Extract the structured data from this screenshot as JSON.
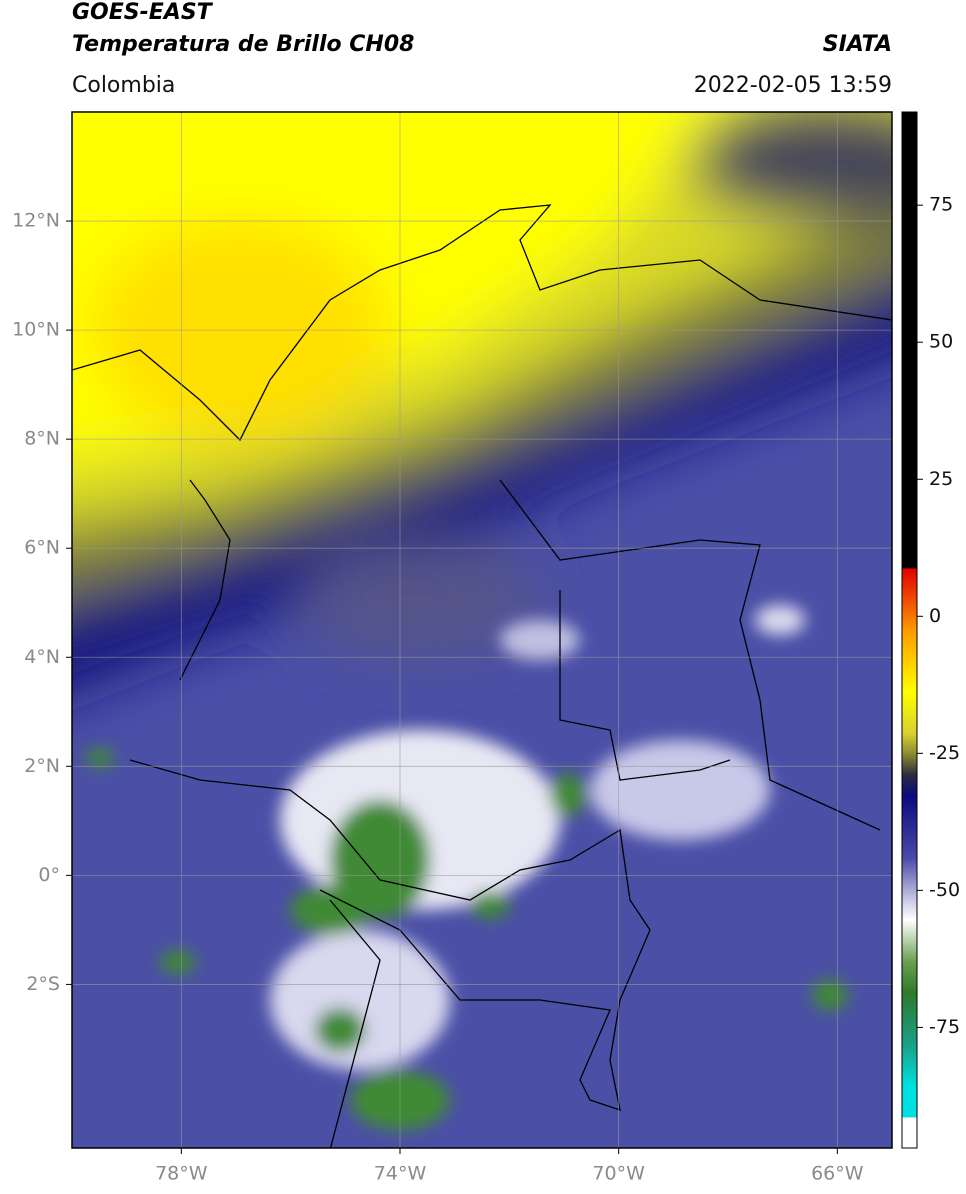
{
  "header": {
    "title": "GOES-EAST",
    "subtitle": "Temperatura de Brillo CH08",
    "source": "SIATA",
    "region": "Colombia",
    "datetime": "2022-02-05 13:59"
  },
  "map": {
    "xlim": [
      -80,
      -65
    ],
    "ylim": [
      -5,
      14
    ],
    "xticks": [
      {
        "value": -78,
        "label": "78°W"
      },
      {
        "value": -74,
        "label": "74°W"
      },
      {
        "value": -70,
        "label": "70°W"
      },
      {
        "value": -66,
        "label": "66°W"
      }
    ],
    "yticks": [
      {
        "value": 12,
        "label": "12°N"
      },
      {
        "value": 10,
        "label": "10°N"
      },
      {
        "value": 8,
        "label": "8°N"
      },
      {
        "value": 6,
        "label": "6°N"
      },
      {
        "value": 4,
        "label": "4°N"
      },
      {
        "value": 2,
        "label": "2°N"
      },
      {
        "value": 0,
        "label": "0°"
      },
      {
        "value": -2,
        "label": "2°S"
      }
    ],
    "grid": true,
    "colorbar": {
      "lim": [
        -97,
        92
      ],
      "ticks": [
        75,
        50,
        25,
        0,
        -25,
        -50,
        -75
      ]
    }
  }
}
